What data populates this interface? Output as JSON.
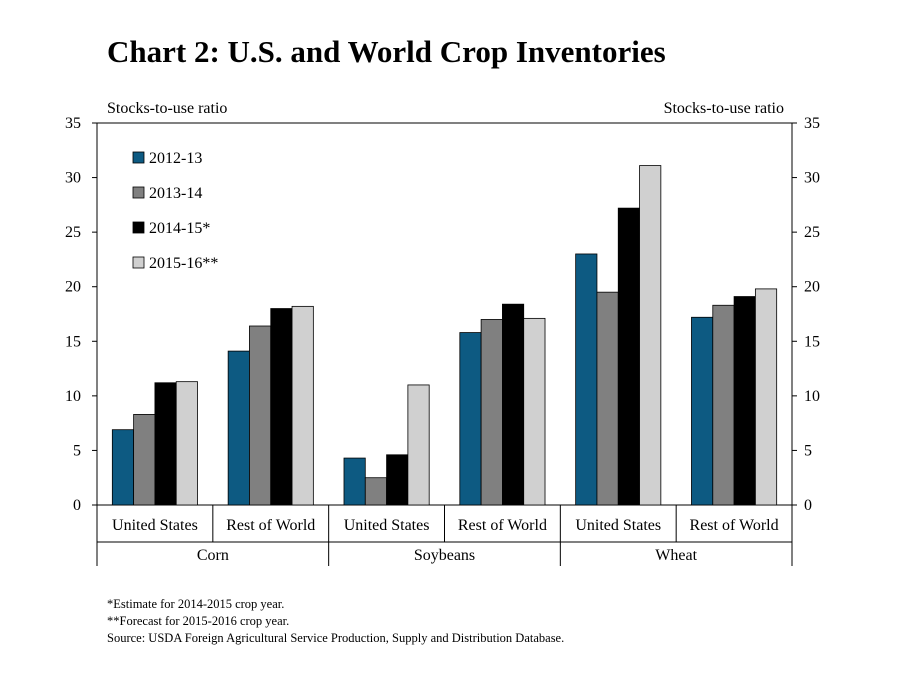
{
  "title": "Chart 2: U.S. and World Crop Inventories",
  "footnotes": [
    "*Estimate for 2014-2015 crop year.",
    "**Forecast for 2015-2016  crop year.",
    "Source: USDA Foreign Agricultural Service Production, Supply and Distribution Database."
  ],
  "chart_data": {
    "type": "bar",
    "ylabel_left": "Stocks-to-use ratio",
    "ylabel_right": "Stocks-to-use ratio",
    "ylim": [
      0,
      35
    ],
    "yticks": [
      0,
      5,
      10,
      15,
      20,
      25,
      30,
      35
    ],
    "grid": false,
    "legend_position": "top-left",
    "groups": [
      "Corn",
      "Soybeans",
      "Wheat"
    ],
    "categories": [
      "United States",
      "Rest of World",
      "United States",
      "Rest of World",
      "United States",
      "Rest of World"
    ],
    "category_group": [
      0,
      0,
      1,
      1,
      2,
      2
    ],
    "series": [
      {
        "name": "2012-13",
        "color": "#0d5a82",
        "values": [
          6.9,
          14.1,
          4.3,
          15.8,
          23.0,
          17.2
        ]
      },
      {
        "name": "2013-14",
        "color": "#808080",
        "values": [
          8.3,
          16.4,
          2.5,
          17.0,
          19.5,
          18.3
        ]
      },
      {
        "name": "2014-15*",
        "color": "#000000",
        "values": [
          11.2,
          18.0,
          4.6,
          18.4,
          27.2,
          19.1
        ]
      },
      {
        "name": "2015-16**",
        "color": "#d0d0d0",
        "values": [
          11.3,
          18.2,
          11.0,
          17.1,
          31.1,
          19.8
        ]
      }
    ]
  }
}
